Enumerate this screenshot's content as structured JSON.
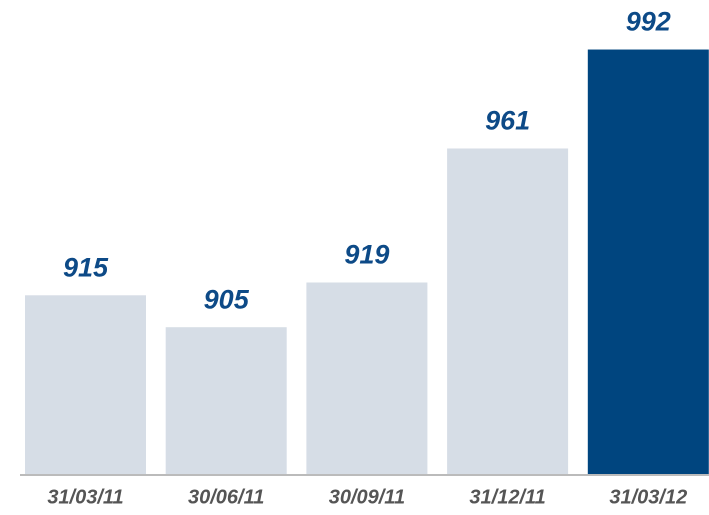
{
  "chart_data": {
    "type": "bar",
    "categories": [
      "31/03/11",
      "30/06/11",
      "30/09/11",
      "31/12/11",
      "31/03/12"
    ],
    "values": [
      915,
      905,
      919,
      961,
      992
    ],
    "colors": [
      "#d6dde6",
      "#d6dde6",
      "#d6dde6",
      "#d6dde6",
      "#00457f"
    ],
    "ylim": [
      859,
      1000
    ]
  }
}
